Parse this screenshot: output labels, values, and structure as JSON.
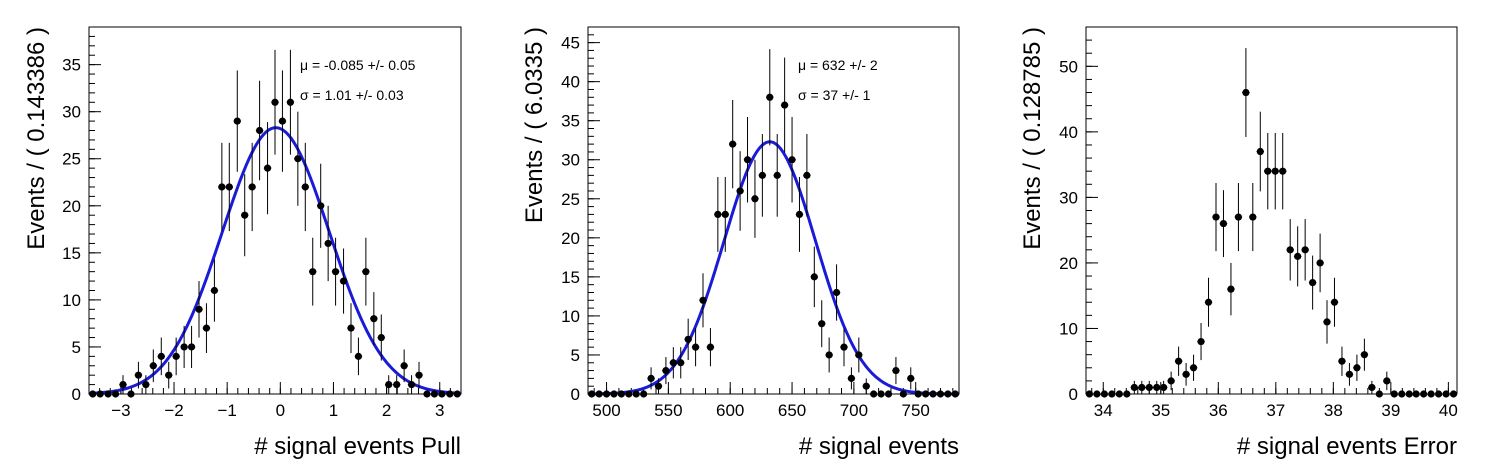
{
  "chart_data": [
    {
      "type": "scatter",
      "xlabel": "# signal events Pull",
      "ylabel": "Events / ( 0.143386 )",
      "xlim": [
        -3.6,
        3.4
      ],
      "ylim": [
        0,
        39
      ],
      "xticks": [
        -3,
        -2,
        -1,
        0,
        1,
        2,
        3
      ],
      "xtick_labels": [
        "−3",
        "−2",
        "−1",
        "0",
        "1",
        "2",
        "3"
      ],
      "yticks": [
        0,
        5,
        10,
        15,
        20,
        25,
        30,
        35
      ],
      "ytick_labels": [
        "0",
        "5",
        "10",
        "15",
        "20",
        "25",
        "30",
        "35"
      ],
      "annotations": [
        "μ = -0.085 +/- 0.05",
        "σ =  1.01 +/- 0.03"
      ],
      "fit": {
        "type": "gaussian",
        "mean": -0.085,
        "sigma": 1.01,
        "amplitude": 28.3
      },
      "x": [
        -3.53,
        -3.39,
        -3.24,
        -3.1,
        -2.96,
        -2.81,
        -2.67,
        -2.53,
        -2.39,
        -2.24,
        -2.1,
        -1.96,
        -1.81,
        -1.67,
        -1.53,
        -1.39,
        -1.24,
        -1.1,
        -0.96,
        -0.81,
        -0.67,
        -0.53,
        -0.39,
        -0.24,
        -0.1,
        0.04,
        0.19,
        0.33,
        0.47,
        0.61,
        0.76,
        0.9,
        1.04,
        1.19,
        1.33,
        1.47,
        1.61,
        1.76,
        1.9,
        2.04,
        2.19,
        2.33,
        2.47,
        2.61,
        2.76,
        2.9,
        3.04,
        3.19,
        3.33
      ],
      "y": [
        0,
        0,
        0,
        0,
        1,
        0,
        2,
        1,
        3,
        4,
        2,
        4,
        5,
        5,
        9,
        7,
        11,
        22,
        22,
        29,
        19,
        22,
        28,
        24,
        31,
        29,
        31,
        25,
        22,
        13,
        20,
        16,
        13,
        12,
        7,
        4,
        13,
        8,
        6,
        1,
        1,
        3,
        1,
        2,
        0,
        0,
        0,
        0,
        0
      ]
    },
    {
      "type": "scatter",
      "xlabel": "# signal events",
      "ylabel": "Events / ( 6.0335 )",
      "xlim": [
        485,
        785
      ],
      "ylim": [
        0,
        47
      ],
      "xticks": [
        500,
        550,
        600,
        650,
        700,
        750
      ],
      "xtick_labels": [
        "500",
        "550",
        "600",
        "650",
        "700",
        "750"
      ],
      "yticks": [
        0,
        5,
        10,
        15,
        20,
        25,
        30,
        35,
        40,
        45
      ],
      "ytick_labels": [
        "0",
        "5",
        "10",
        "15",
        "20",
        "25",
        "30",
        "35",
        "40",
        "45"
      ],
      "annotations": [
        "μ =  632 +/- 2",
        "σ =  37 +/- 1"
      ],
      "fit": {
        "type": "gaussian",
        "mean": 632,
        "sigma": 37,
        "amplitude": 32.3
      },
      "x": [
        488,
        494,
        500,
        506,
        512,
        518,
        524,
        530,
        536,
        542,
        548,
        554,
        560,
        566,
        572,
        578,
        584,
        590,
        596,
        602,
        608,
        614,
        620,
        626,
        632,
        638,
        644,
        650,
        656,
        662,
        668,
        674,
        680,
        686,
        692,
        698,
        704,
        710,
        716,
        722,
        728,
        734,
        740,
        746,
        752,
        758,
        764,
        770,
        776,
        782
      ],
      "y": [
        0,
        0,
        0,
        0,
        0,
        0,
        0,
        0,
        2,
        1,
        3,
        4,
        4,
        7,
        6,
        12,
        6,
        23,
        23,
        32,
        26,
        30,
        25,
        28,
        38,
        28,
        37,
        30,
        23,
        28,
        15,
        9,
        5,
        13,
        6,
        2,
        5,
        1,
        0,
        0,
        0,
        3,
        0,
        2,
        0,
        0,
        0,
        0,
        0,
        0
      ]
    },
    {
      "type": "scatter",
      "xlabel": "# signal events Error",
      "ylabel": "Events / ( 0.128785 )",
      "xlim": [
        33.7,
        40.15
      ],
      "ylim": [
        0,
        56
      ],
      "xticks": [
        34,
        35,
        36,
        37,
        38,
        39,
        40
      ],
      "xtick_labels": [
        "34",
        "35",
        "36",
        "37",
        "38",
        "39",
        "40"
      ],
      "yticks": [
        0,
        10,
        20,
        30,
        40,
        50
      ],
      "ytick_labels": [
        "0",
        "10",
        "20",
        "30",
        "40",
        "50"
      ],
      "annotations": [],
      "x": [
        33.76,
        33.89,
        34.02,
        34.15,
        34.28,
        34.41,
        34.54,
        34.67,
        34.8,
        34.93,
        35.05,
        35.18,
        35.31,
        35.44,
        35.57,
        35.7,
        35.83,
        35.96,
        36.09,
        36.22,
        36.35,
        36.48,
        36.6,
        36.73,
        36.86,
        36.99,
        37.12,
        37.25,
        37.38,
        37.51,
        37.64,
        37.77,
        37.89,
        38.02,
        38.15,
        38.28,
        38.41,
        38.54,
        38.67,
        38.8,
        38.93,
        39.06,
        39.19,
        39.32,
        39.44,
        39.57,
        39.7,
        39.83,
        39.96,
        40.09
      ],
      "y": [
        0,
        0,
        0,
        0,
        0,
        0,
        1,
        1,
        1,
        1,
        1,
        2,
        5,
        3,
        4,
        8,
        14,
        27,
        26,
        16,
        27,
        46,
        27,
        37,
        34,
        34,
        34,
        22,
        21,
        22,
        17,
        20,
        11,
        14,
        5,
        3,
        4,
        6,
        1,
        0,
        2,
        0,
        0,
        0,
        0,
        0,
        0,
        0,
        0,
        0
      ]
    }
  ]
}
